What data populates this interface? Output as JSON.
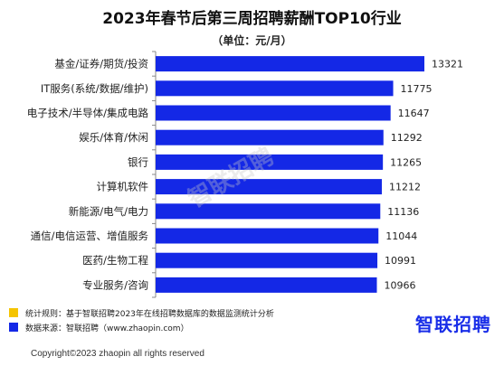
{
  "title": "2023年春节后第三周招聘薪酬TOP10行业",
  "subtitle": "（单位：元/月）",
  "watermark": "智联招聘",
  "chart_data": {
    "type": "bar",
    "orientation": "horizontal",
    "categories": [
      "基金/证券/期货/投资",
      "IT服务(系统/数据/维护)",
      "电子技术/半导体/集成电路",
      "娱乐/体育/休闲",
      "银行",
      "计算机软件",
      "新能源/电气/电力",
      "通信/电信运营、增值服务",
      "医药/生物工程",
      "专业服务/咨询"
    ],
    "values": [
      13321,
      11775,
      11647,
      11292,
      11265,
      11212,
      11136,
      11044,
      10991,
      10966
    ],
    "bar_color": "#1428e6",
    "grid": false
  },
  "notes": [
    {
      "color": "#f5c400",
      "text": "统计规则：基于智联招聘2023年在线招聘数据库的数据监测统计分析"
    },
    {
      "color": "#1428e6",
      "text": "数据来源：智联招聘（www.zhaopin.com）"
    }
  ],
  "logo": "智联招聘",
  "copyright": "Copyright©2023 zhaopin all rights reserved"
}
